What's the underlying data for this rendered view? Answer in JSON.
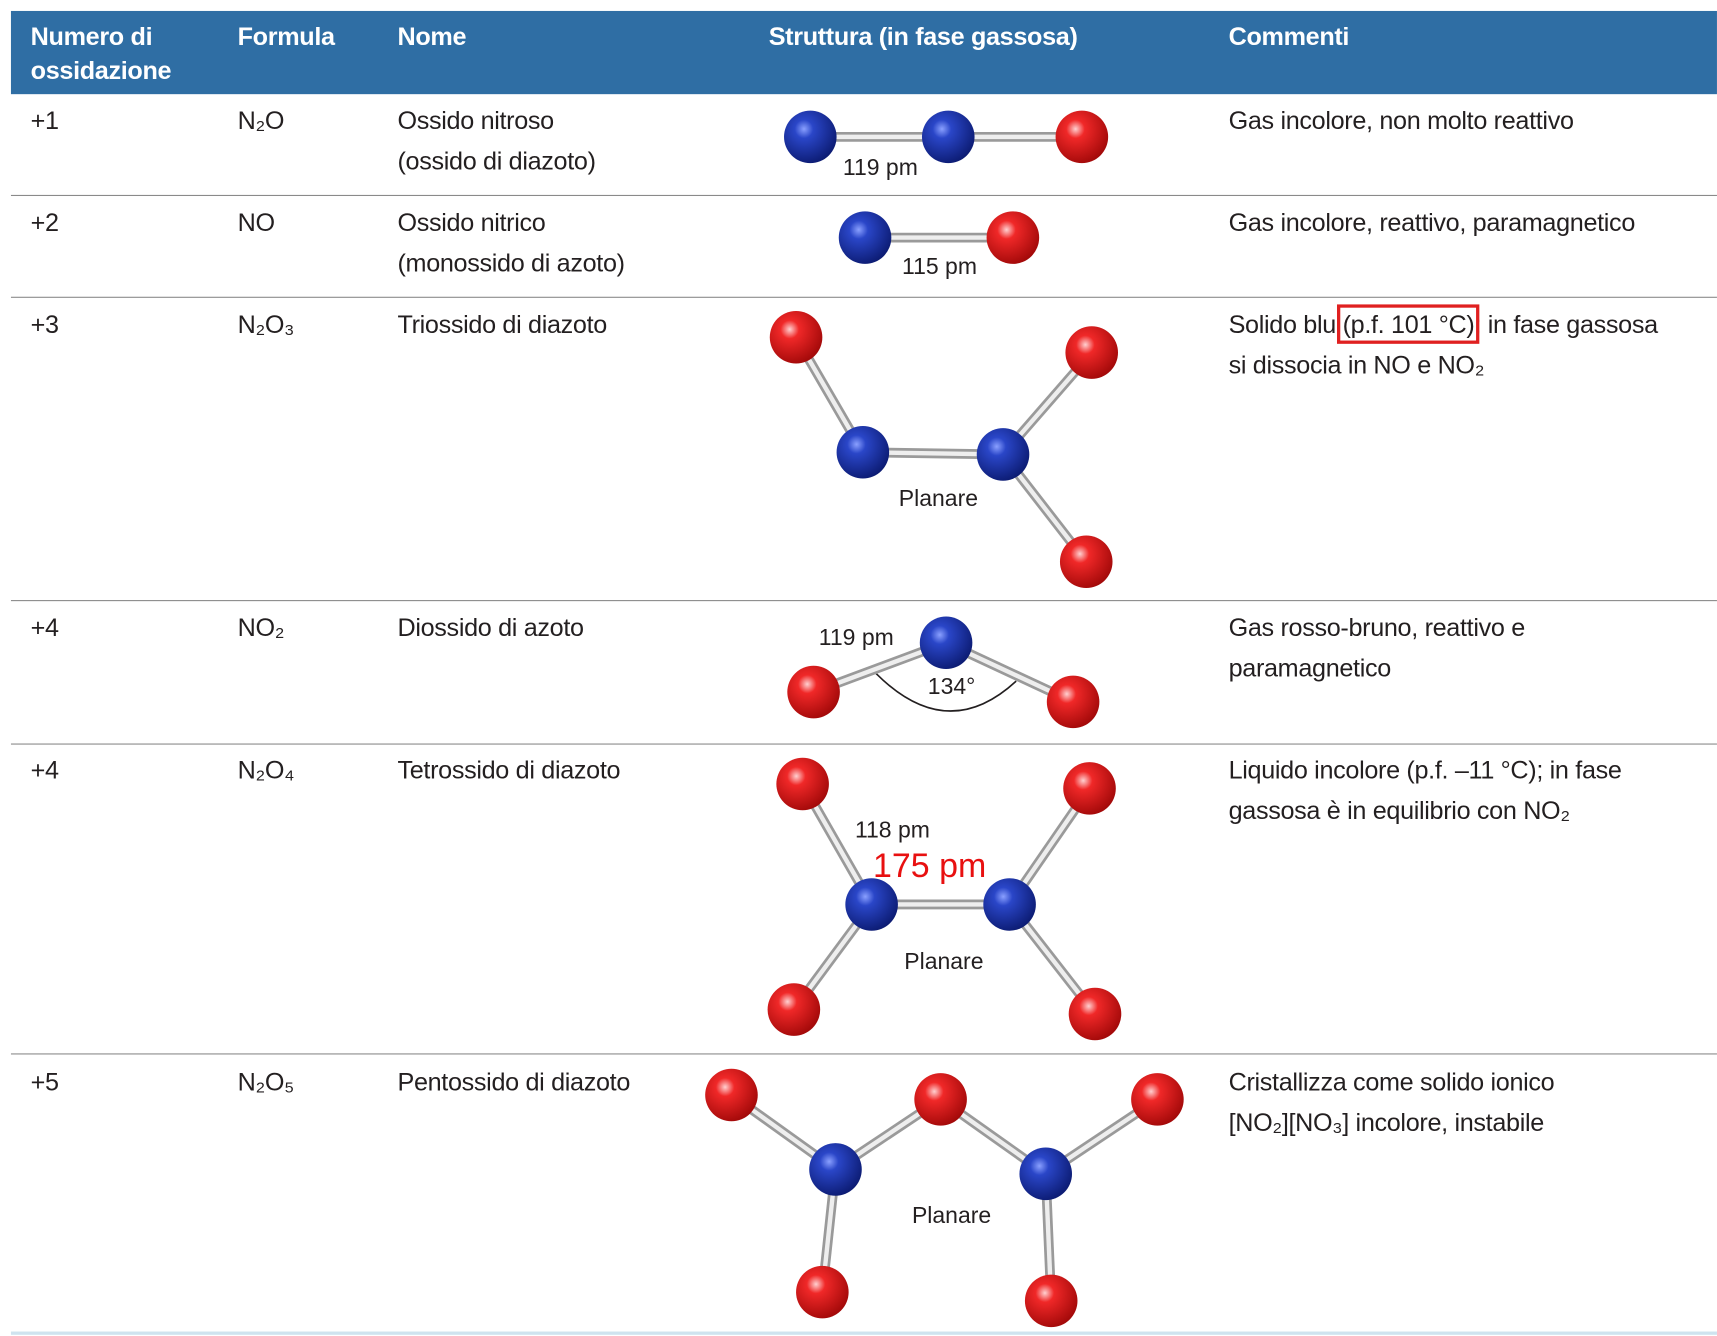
{
  "header": {
    "columns": [
      [
        "Numero di",
        "ossidazione"
      ],
      [
        "Formula"
      ],
      [
        "Nome"
      ],
      [
        "Struttura (in fase gassosa)"
      ],
      [
        "Commenti"
      ]
    ]
  },
  "rows": [
    {
      "oxidation": "+1",
      "formula": "N₂O",
      "name": [
        "Ossido nitroso",
        "(ossido di diazoto)"
      ],
      "labels": [
        "119 pm"
      ],
      "comment": [
        [
          "Gas incolore, non molto reattivo"
        ]
      ]
    },
    {
      "oxidation": "+2",
      "formula": "NO",
      "name": [
        "Ossido nitrico",
        "(monossido di azoto)"
      ],
      "labels": [
        "115 pm"
      ],
      "comment": [
        [
          "Gas incolore, reattivo, paramagnetico"
        ]
      ]
    },
    {
      "oxidation": "+3",
      "formula": "N₂O₃",
      "name": [
        "Triossido di diazoto"
      ],
      "labels": [
        "Planare"
      ],
      "comment": [
        [
          "Solido blu",
          "(p.f. 101 °C)",
          "; in fase gassosa"
        ],
        [
          "si dissocia in NO e NO₂"
        ]
      ]
    },
    {
      "oxidation": "+4",
      "formula": "NO₂",
      "name": [
        "Diossido di azoto"
      ],
      "labels": [
        "119 pm",
        "134°"
      ],
      "comment": [
        [
          "Gas rosso-bruno, reattivo e"
        ],
        [
          "paramagnetico"
        ]
      ]
    },
    {
      "oxidation": "+4",
      "formula": "N₂O₄",
      "name": [
        "Tetrossido di diazoto"
      ],
      "labels": [
        "118 pm",
        "175 pm",
        "Planare"
      ],
      "comment": [
        [
          "Liquido incolore (p.f. –11 °C); in fase"
        ],
        [
          "gassosa è in equilibrio con NO₂"
        ]
      ]
    },
    {
      "oxidation": "+5",
      "formula": "N₂O₅",
      "name": [
        "Pentossido di diazoto"
      ],
      "labels": [
        "Planare"
      ],
      "comment": [
        [
          "Cristallizza come solido ionico"
        ],
        [
          "[NO₂][NO₃] incolore, instabile"
        ]
      ]
    }
  ]
}
